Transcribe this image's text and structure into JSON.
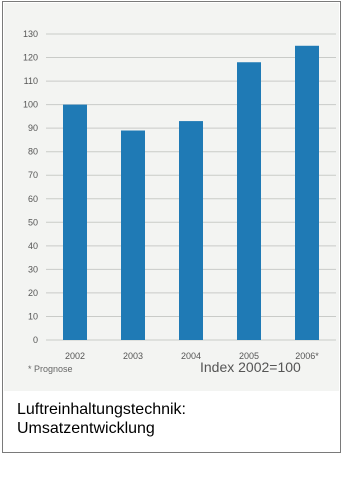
{
  "chart_data": {
    "type": "bar",
    "categories": [
      "2002",
      "2003",
      "2004",
      "2005",
      "2006*"
    ],
    "values": [
      100,
      89,
      93,
      118,
      125
    ],
    "ylim": [
      0,
      130
    ],
    "yticks": [
      0,
      10,
      20,
      30,
      40,
      50,
      60,
      70,
      80,
      90,
      100,
      110,
      120,
      130
    ],
    "grid": true,
    "bar_color": "#1f7ab5",
    "annotations": [
      "* Prognose",
      "Index 2002=100"
    ]
  },
  "caption": {
    "line1": "Luftreinhaltungstechnik:",
    "line2": "Umsatzentwicklung"
  },
  "colors": {
    "panel_background": "#f3f4f2",
    "grid": "#c9cbc8",
    "bar": "#1f7ab5"
  }
}
